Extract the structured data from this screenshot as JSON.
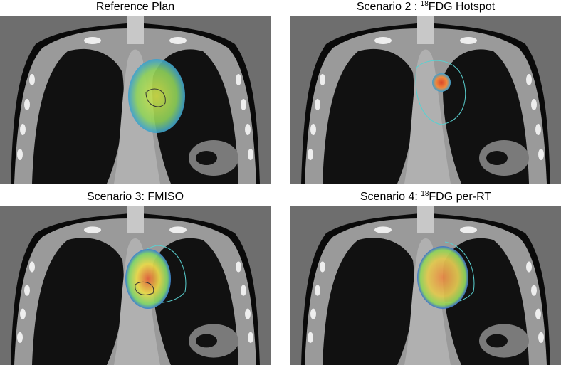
{
  "panels": [
    {
      "title": "Reference Plan"
    },
    {
      "title_prefix": "Scenario 2 : ",
      "title_superscript": "18",
      "title_suffix": "FDG Hotspot"
    },
    {
      "title": "Scenario 3: FMISO"
    },
    {
      "title_prefix": "Scenario 4: ",
      "title_superscript": "18",
      "title_suffix": "FDG per-RT"
    }
  ]
}
